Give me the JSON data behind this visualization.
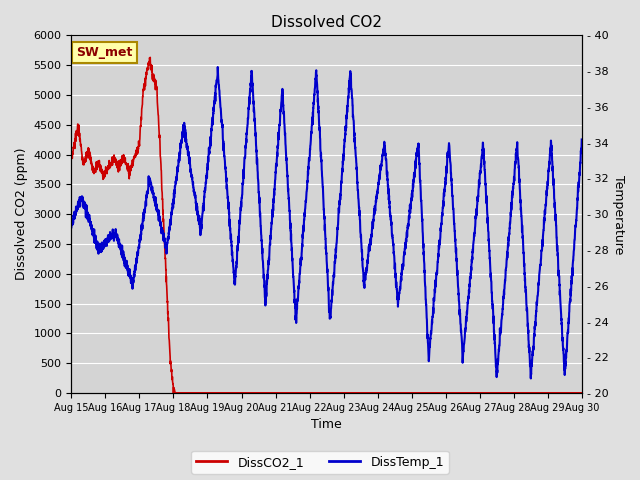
{
  "title": "Dissolved CO2",
  "xlabel": "Time",
  "ylabel_left": "Dissolved CO2 (ppm)",
  "ylabel_right": "Temperature",
  "annotation": "SW_met",
  "xlim_days": [
    15,
    30
  ],
  "ylim_left": [
    0,
    6000
  ],
  "ylim_right": [
    20,
    40
  ],
  "legend_labels": [
    "DissCO2_1",
    "DissTemp_1"
  ],
  "co2_color": "#cc0000",
  "temp_color": "#0000cc",
  "fig_bg": "#e0e0e0",
  "plot_bg": "#d4d4d4",
  "grid_color": "#ffffff",
  "annot_fg": "#8b0000",
  "annot_bg": "#ffffaa",
  "annot_edge": "#aa8800"
}
